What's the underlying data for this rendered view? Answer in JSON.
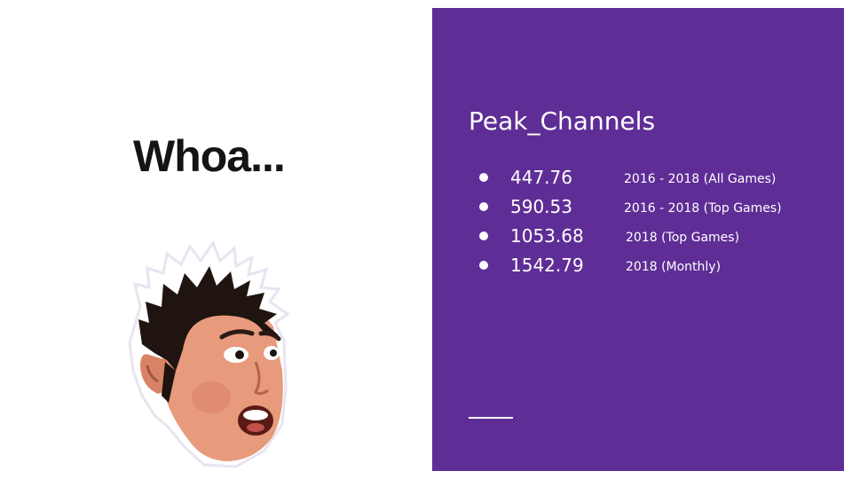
{
  "slide": {
    "headline": "Whoa...",
    "emote_icon": "surprised-face-emote-icon",
    "panel": {
      "background": "#5f2d96",
      "title": "Peak_Channels",
      "stats": [
        {
          "value": "447.76",
          "description": "2016 - 2018 (All Games)"
        },
        {
          "value": "590.53",
          "description": "2016 - 2018 (Top Games)"
        },
        {
          "value": "1053.68",
          "description": "2018 (Top Games)"
        },
        {
          "value": "1542.79",
          "description": "2018 (Monthly)"
        }
      ]
    }
  }
}
